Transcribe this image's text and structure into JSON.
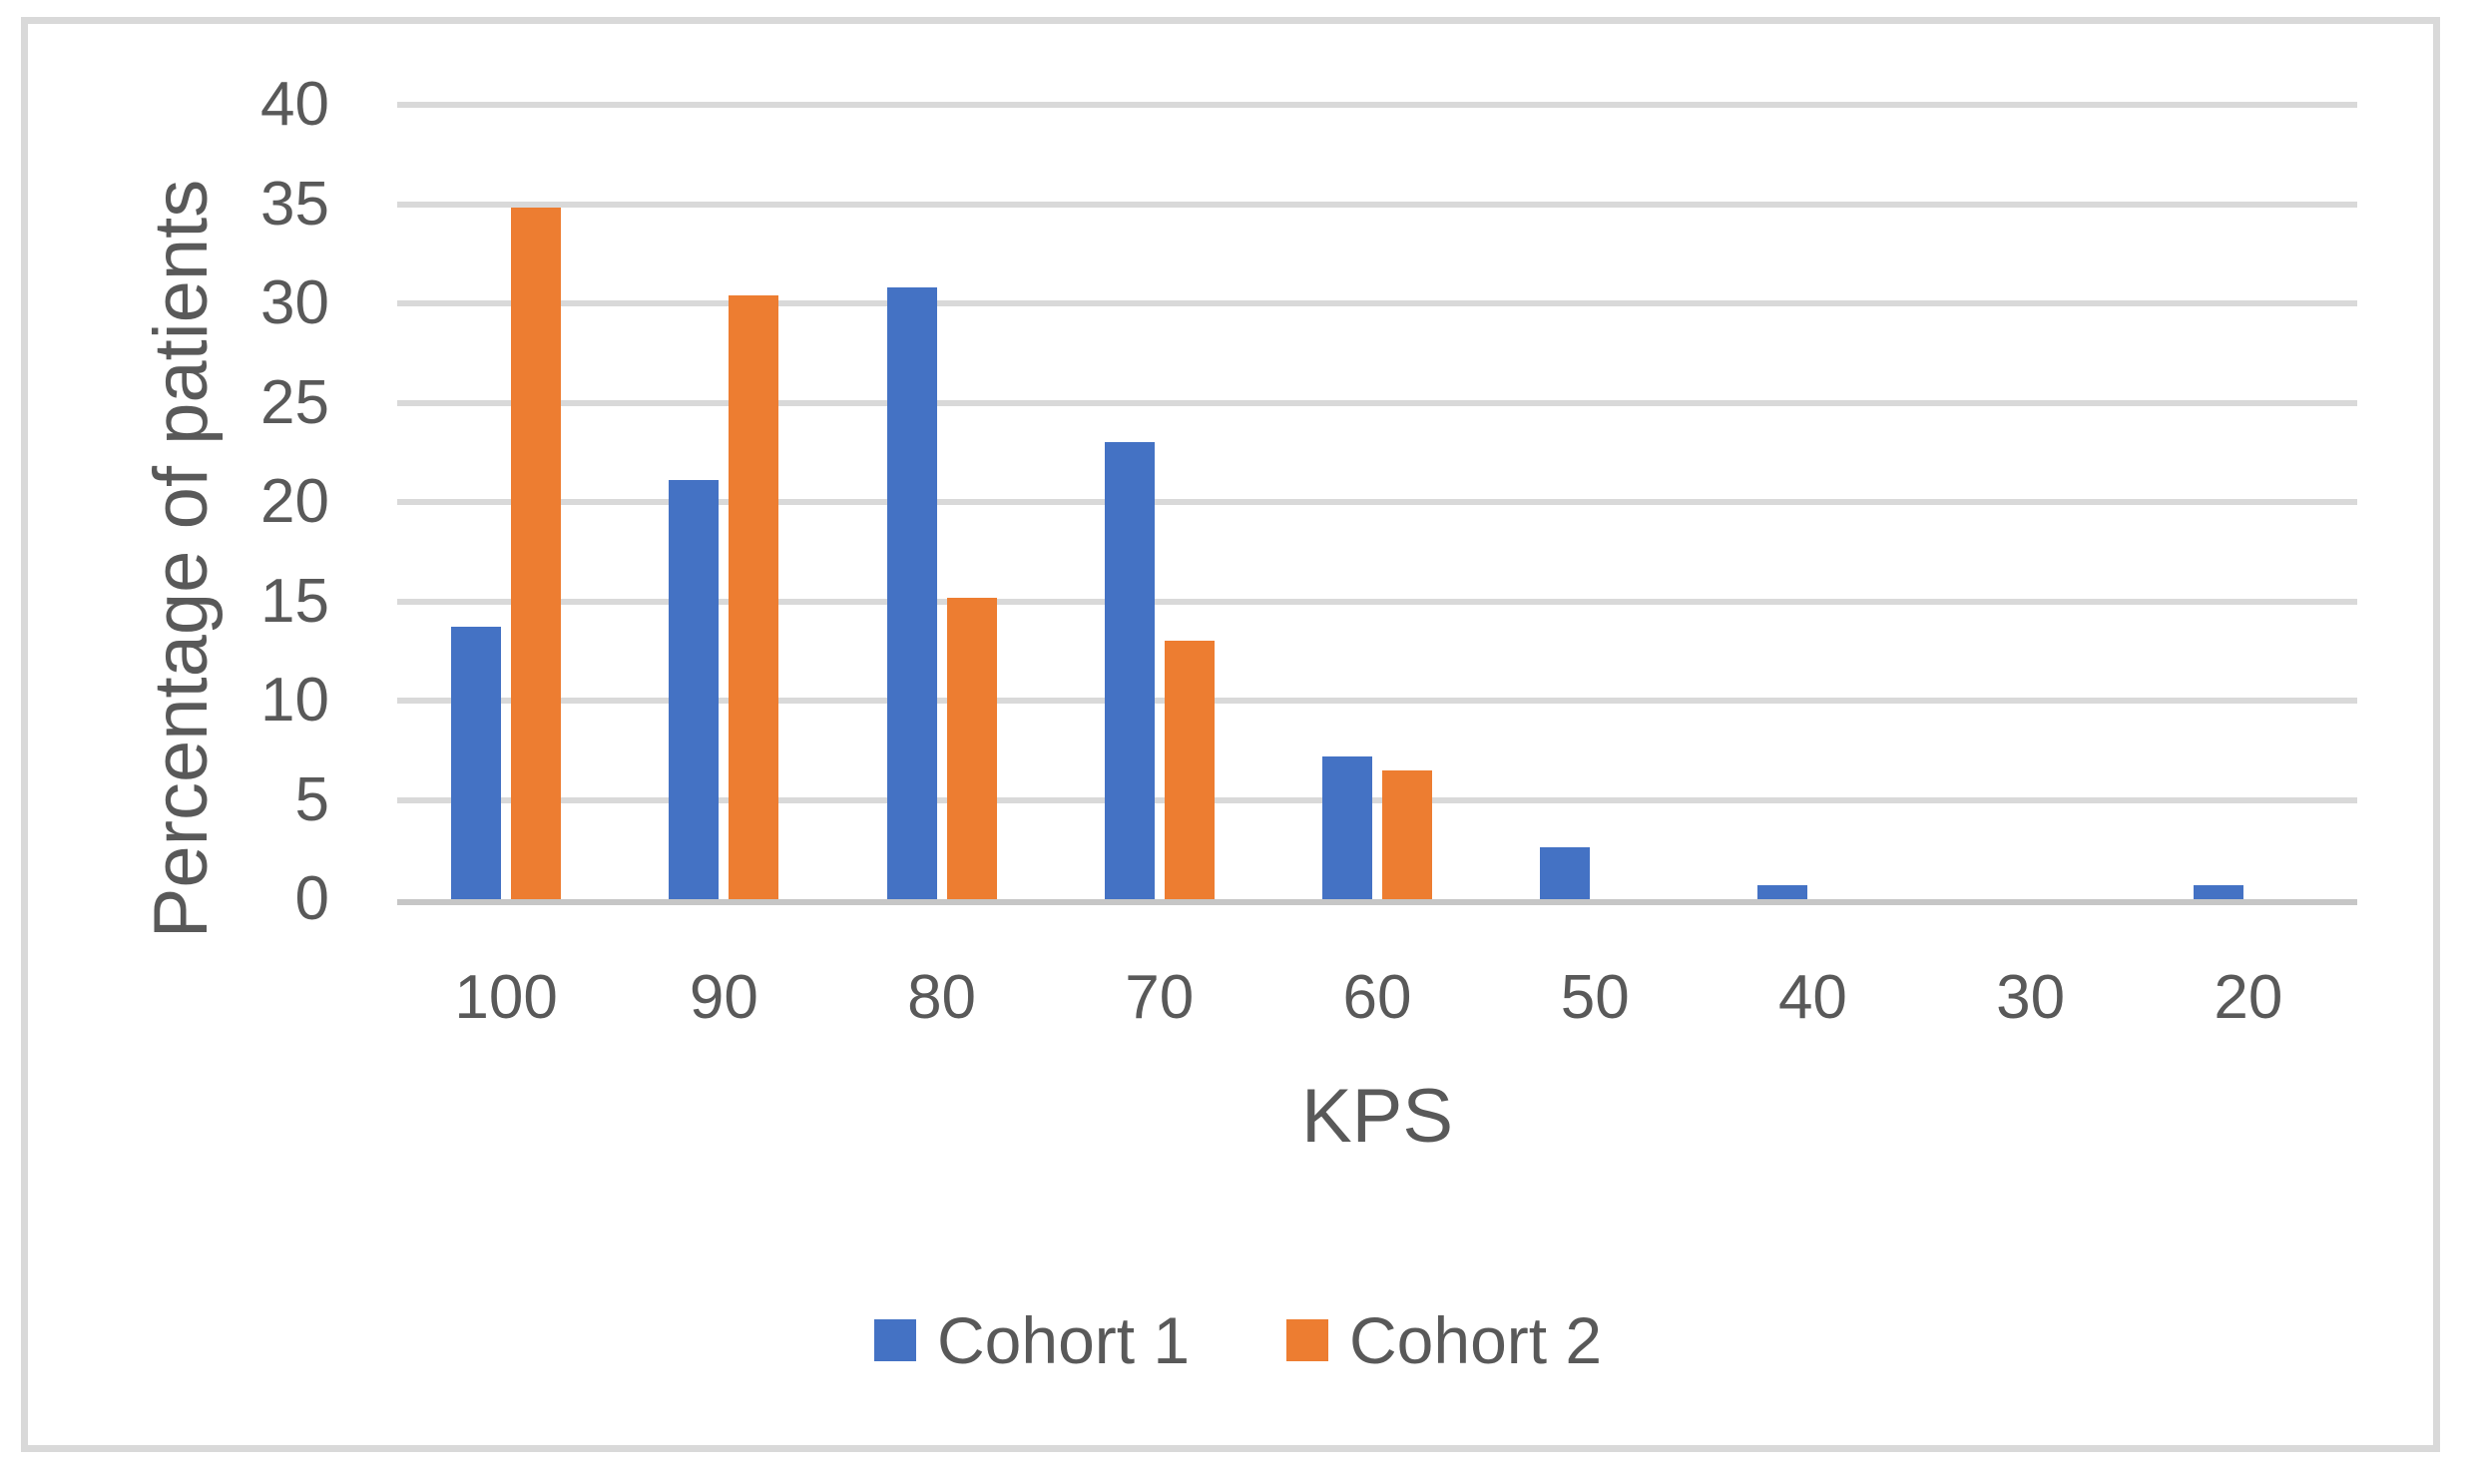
{
  "chart_data": {
    "type": "bar",
    "title": "",
    "categories": [
      "100",
      "90",
      "80",
      "70",
      "60",
      "50",
      "40",
      "30",
      "20"
    ],
    "series": [
      {
        "name": "Cohort 1",
        "color": "#4472C4",
        "values": [
          13.7,
          21.1,
          30.8,
          23.0,
          7.2,
          2.6,
          0.7,
          0,
          0.7
        ]
      },
      {
        "name": "Cohort 2",
        "color": "#ED7D31",
        "values": [
          34.8,
          30.4,
          15.2,
          13.0,
          6.5,
          0,
          0,
          0,
          0
        ]
      }
    ],
    "xlabel": "KPS",
    "ylabel": "Percentage of patients",
    "ylim": [
      0,
      40
    ],
    "ytick_step": 5,
    "yticks": [
      "0",
      "5",
      "10",
      "15",
      "20",
      "25",
      "30",
      "35",
      "40"
    ],
    "grid": "horizontal-only",
    "legend_position": "bottom-center",
    "colors": {
      "axis_text": "#595959",
      "gridline": "#D9D9D9",
      "axis_line": "#C6C6C6",
      "frame_border": "#D9D9D9",
      "background": "#FFFFFF"
    }
  }
}
